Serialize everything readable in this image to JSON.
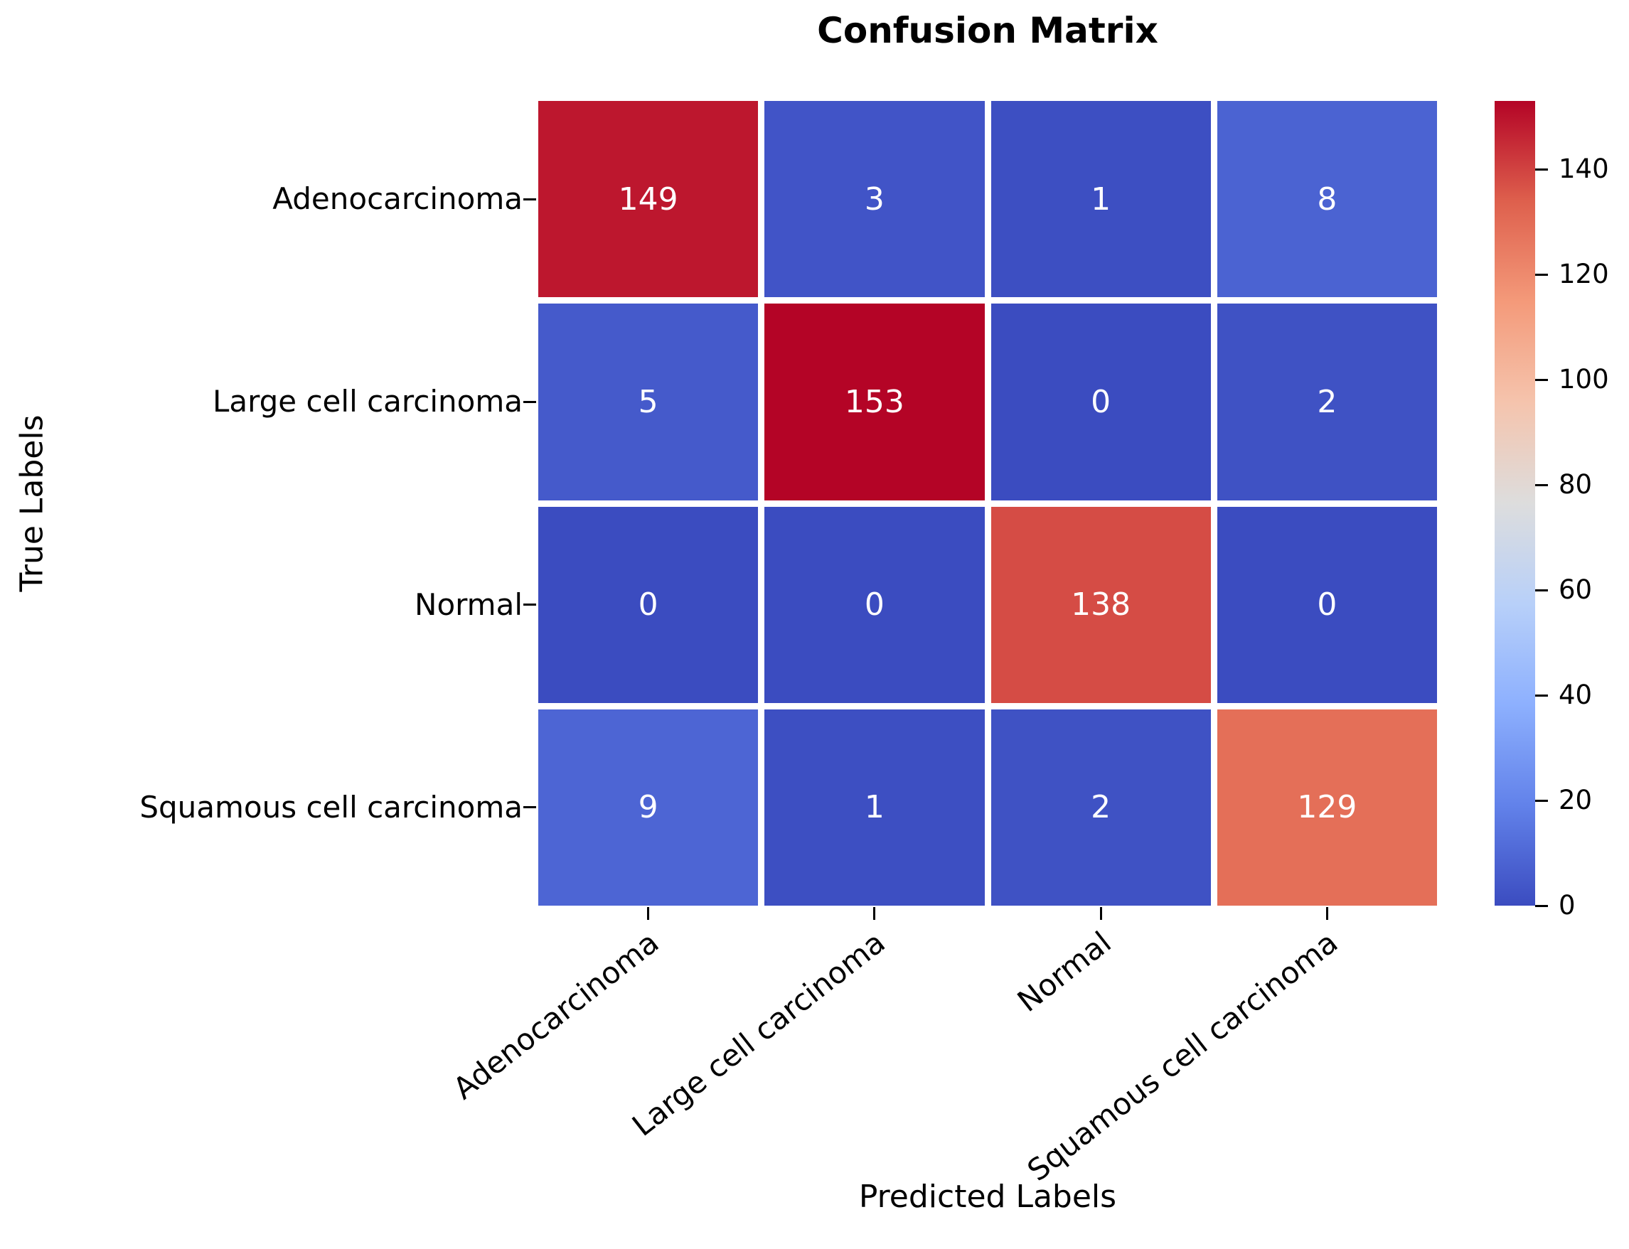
{
  "figure": {
    "title": "Confusion Matrix",
    "xlabel": "Predicted Labels",
    "ylabel": "True Labels"
  },
  "chart_data": {
    "type": "heatmap",
    "title": "Confusion Matrix",
    "xlabel": "Predicted Labels",
    "ylabel": "True Labels",
    "x_categories": [
      "Adenocarcinoma",
      "Large cell carcinoma",
      "Normal",
      "Squamous cell carcinoma"
    ],
    "y_categories": [
      "Adenocarcinoma",
      "Large cell carcinoma",
      "Normal",
      "Squamous cell carcinoma"
    ],
    "matrix": [
      [
        149,
        3,
        1,
        8
      ],
      [
        5,
        153,
        0,
        2
      ],
      [
        0,
        0,
        138,
        0
      ],
      [
        9,
        1,
        2,
        129
      ]
    ],
    "vmin": 0,
    "vmax": 153,
    "colormap": "coolwarm",
    "colormap_anchors": [
      "#3B4CC0",
      "#6282EA",
      "#8DB0FE",
      "#B8D0F9",
      "#DDDDDD",
      "#F5C4AD",
      "#F49A7A",
      "#DE604D",
      "#B40426"
    ],
    "colorbar_ticks": [
      0,
      20,
      40,
      60,
      80,
      100,
      120,
      140
    ],
    "annotation_color": "#FFFFFF",
    "axis_text_color": "#000000",
    "cell_gap_color": "#FFFFFF",
    "grid": false,
    "legend_position": "right-colorbar"
  }
}
